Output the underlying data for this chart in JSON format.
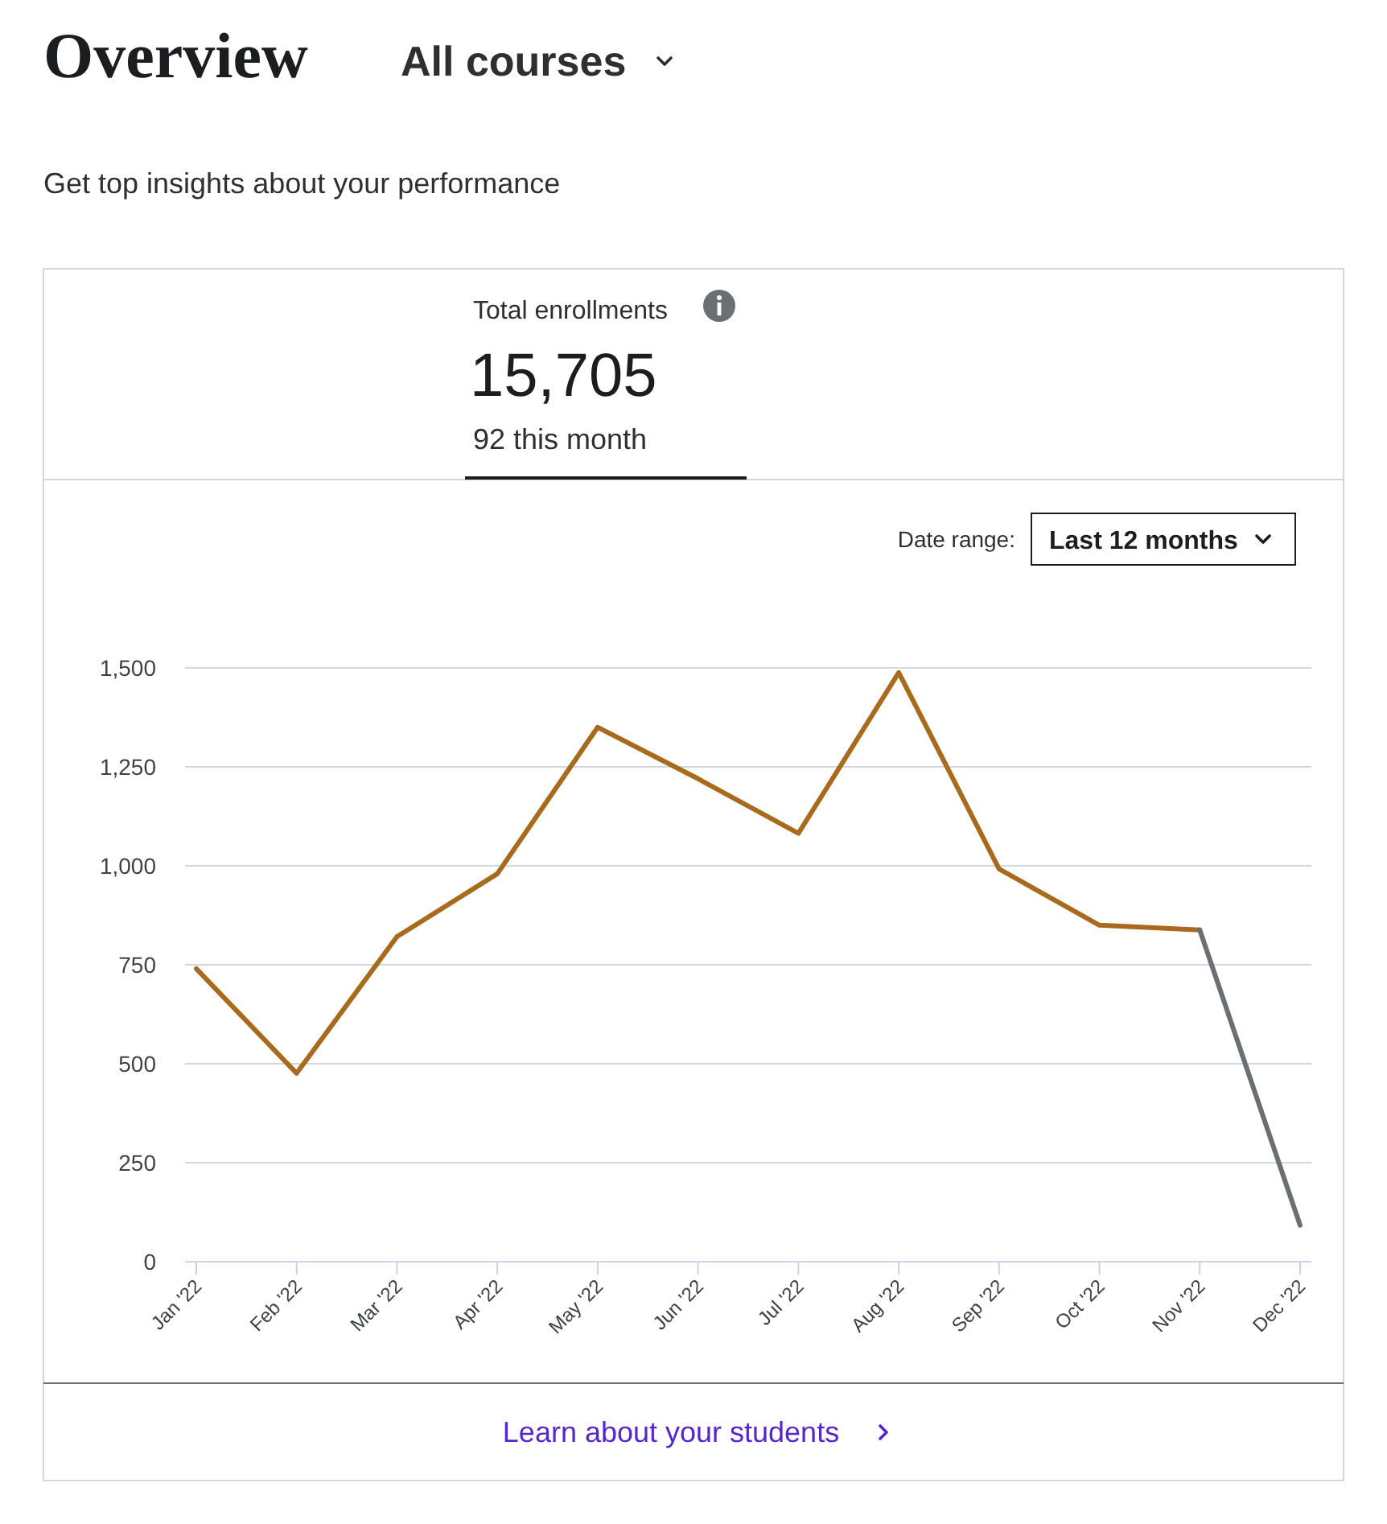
{
  "chart_data": {
    "type": "line",
    "title": "Overview",
    "subtitle": "Get top insights about your performance",
    "annotations": [
      "All courses",
      "Total enrollments",
      "15,705",
      "92 this month",
      "Date range:",
      "Last 12 months",
      "Learn about your students"
    ],
    "categories": [
      "Jan '22",
      "Feb '22",
      "Mar '22",
      "Apr '22",
      "May '22",
      "Jun '22",
      "Jul '22",
      "Aug '22",
      "Sep '22",
      "Oct '22",
      "Nov '22",
      "Dec '22"
    ],
    "series": [
      {
        "color": "#a86b1d",
        "values": [
          740,
          476,
          821,
          980,
          1350,
          1220,
          1082,
          1488,
          992,
          850,
          838,
          null
        ]
      },
      {
        "color": "#6a6f73",
        "values": [
          null,
          null,
          null,
          null,
          null,
          null,
          null,
          null,
          null,
          null,
          838,
          92
        ]
      }
    ],
    "ylim": [
      0,
      1500
    ],
    "yticks": [
      0,
      250,
      500,
      750,
      {
        "value": 1000,
        "label": "1,000"
      },
      {
        "value": 1250,
        "label": "1,250"
      },
      {
        "value": 1500,
        "label": "1,500"
      }
    ],
    "grid": "y",
    "line_style": "solid",
    "marker": "none"
  }
}
